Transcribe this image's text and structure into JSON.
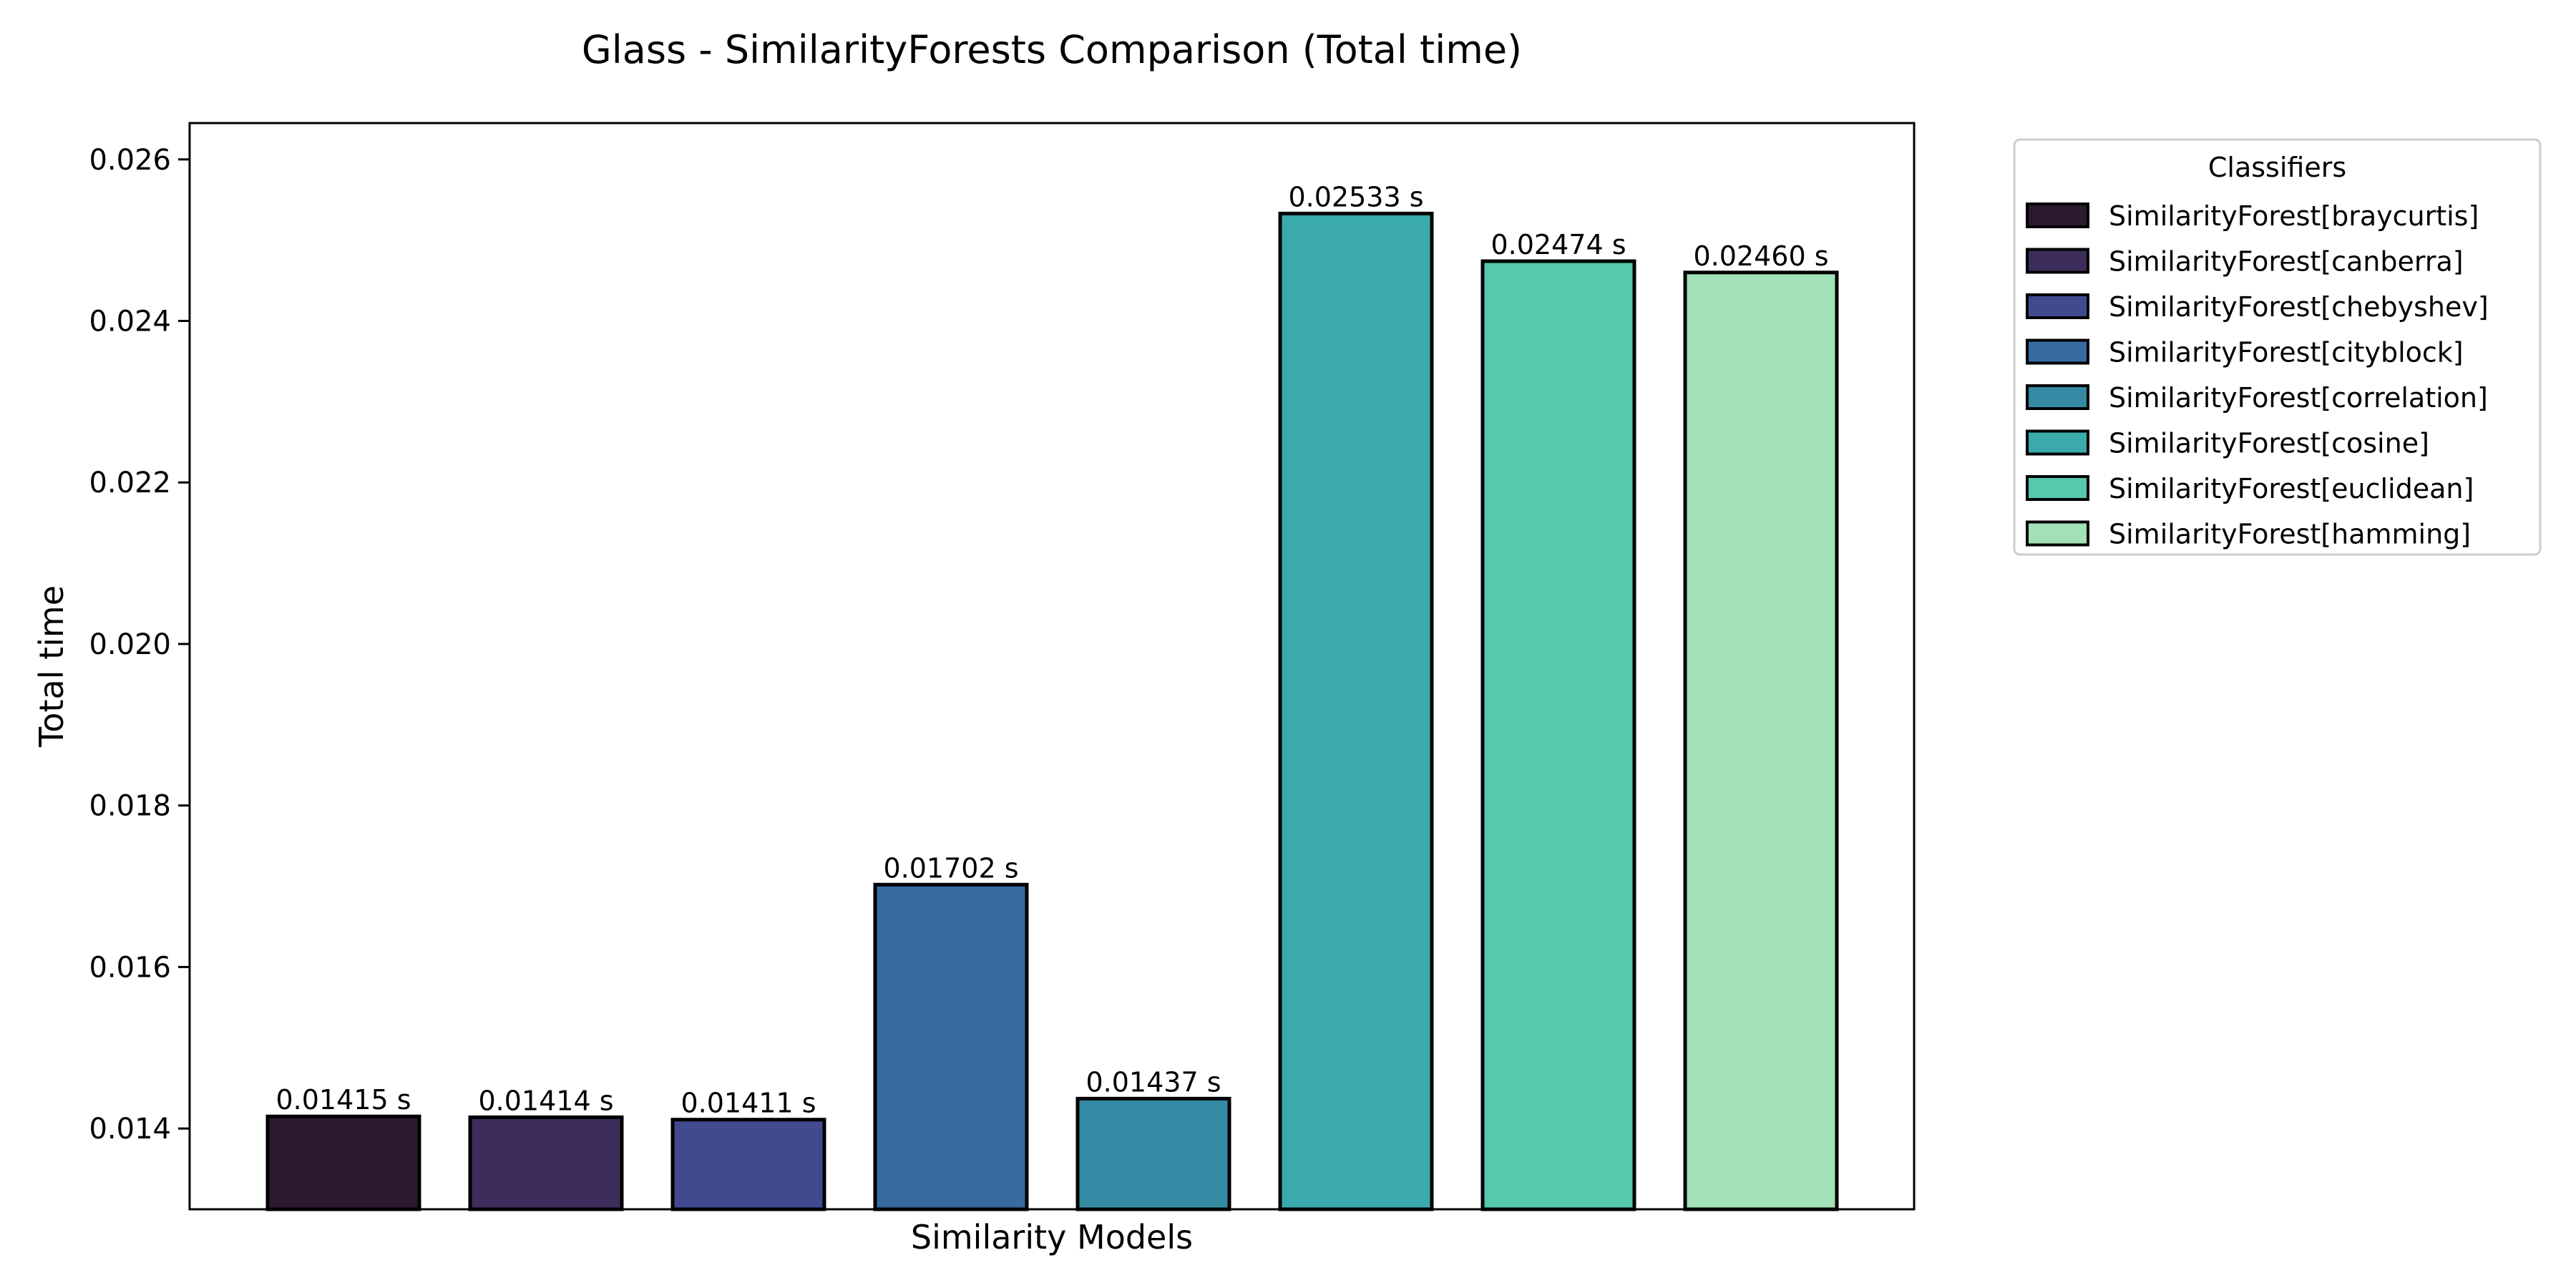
{
  "chart_data": {
    "type": "bar",
    "title": "Glass - SimilarityForests Comparison (Total time)",
    "xlabel": "Similarity Models",
    "ylabel": "Total time",
    "ylim": [
      0.013,
      0.02645
    ],
    "yticks": [
      0.014,
      0.016,
      0.018,
      0.02,
      0.022,
      0.024,
      0.026
    ],
    "ytick_labels": [
      "0.014",
      "0.016",
      "0.018",
      "0.020",
      "0.022",
      "0.024",
      "0.026"
    ],
    "grid": false,
    "legend": {
      "title": "Classifiers",
      "placement": "outside-top-right"
    },
    "categories": [
      "SimilarityForest[braycurtis]",
      "SimilarityForest[canberra]",
      "SimilarityForest[chebyshev]",
      "SimilarityForest[cityblock]",
      "SimilarityForest[correlation]",
      "SimilarityForest[cosine]",
      "SimilarityForest[euclidean]",
      "SimilarityForest[hamming]"
    ],
    "values": [
      0.01415,
      0.01414,
      0.01411,
      0.01702,
      0.01437,
      0.02533,
      0.02474,
      0.0246
    ],
    "value_labels": [
      "0.01415 s",
      "0.01414 s",
      "0.01411 s",
      "0.01702 s",
      "0.01437 s",
      "0.02533 s",
      "0.02474 s",
      "0.02460 s"
    ],
    "colors": [
      "#2b1a2e",
      "#3d2d5c",
      "#414a8f",
      "#376a9f",
      "#358aa3",
      "#3aaaac",
      "#55c9ad",
      "#a2e0b8"
    ]
  }
}
